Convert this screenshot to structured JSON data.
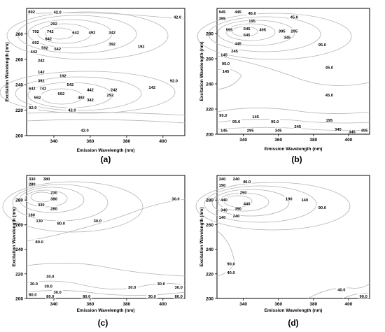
{
  "chart_data": [
    {
      "panel": "(a)",
      "type": "contour",
      "xlabel": "Emission Wavelength (nm)",
      "ylabel": "Excitation Wavelength (nm)",
      "xlim": [
        325,
        412
      ],
      "ylim": [
        200,
        300
      ],
      "xticks": [
        "340",
        "360",
        "380",
        "400"
      ],
      "yticks": [
        "200",
        "220",
        "240",
        "260",
        "280"
      ],
      "contour_labels": [
        {
          "text": "892",
          "x": 327,
          "y": 298
        },
        {
          "text": "42.0",
          "x": 342,
          "y": 297
        },
        {
          "text": "42.0",
          "x": 408,
          "y": 293
        },
        {
          "text": "292",
          "x": 340,
          "y": 288
        },
        {
          "text": "792",
          "x": 330,
          "y": 282
        },
        {
          "text": "742",
          "x": 338,
          "y": 282
        },
        {
          "text": "642",
          "x": 352,
          "y": 281
        },
        {
          "text": "492",
          "x": 361,
          "y": 281
        },
        {
          "text": "342",
          "x": 372,
          "y": 281
        },
        {
          "text": "842",
          "x": 337,
          "y": 276
        },
        {
          "text": "692",
          "x": 330,
          "y": 273
        },
        {
          "text": "392",
          "x": 372,
          "y": 272
        },
        {
          "text": "592",
          "x": 335,
          "y": 269
        },
        {
          "text": "542",
          "x": 342,
          "y": 268
        },
        {
          "text": "192",
          "x": 388,
          "y": 270
        },
        {
          "text": "442",
          "x": 329,
          "y": 266
        },
        {
          "text": "242",
          "x": 333,
          "y": 259
        },
        {
          "text": "142",
          "x": 333,
          "y": 250
        },
        {
          "text": "192",
          "x": 345,
          "y": 247
        },
        {
          "text": "392",
          "x": 333,
          "y": 243
        },
        {
          "text": "542",
          "x": 349,
          "y": 240
        },
        {
          "text": "642",
          "x": 328,
          "y": 237
        },
        {
          "text": "742",
          "x": 334,
          "y": 237
        },
        {
          "text": "692",
          "x": 344,
          "y": 233
        },
        {
          "text": "442",
          "x": 360,
          "y": 236
        },
        {
          "text": "242",
          "x": 373,
          "y": 236
        },
        {
          "text": "142",
          "x": 394,
          "y": 238
        },
        {
          "text": "92.0",
          "x": 406,
          "y": 243
        },
        {
          "text": "592",
          "x": 331,
          "y": 230
        },
        {
          "text": "492",
          "x": 355,
          "y": 230
        },
        {
          "text": "292",
          "x": 371,
          "y": 232
        },
        {
          "text": "342",
          "x": 360,
          "y": 228
        },
        {
          "text": "92.0",
          "x": 328,
          "y": 222
        },
        {
          "text": "42.0",
          "x": 350,
          "y": 220
        },
        {
          "text": "42.0",
          "x": 357,
          "y": 204
        }
      ]
    },
    {
      "panel": "(b)",
      "type": "contour",
      "xlabel": "Emission Wavelength (nm)",
      "ylabel": "Excitation Wavelength (nm)",
      "xlim": [
        325,
        412
      ],
      "ylim": [
        200,
        300
      ],
      "xticks": [
        "340",
        "360",
        "380",
        "400"
      ],
      "yticks": [
        "200",
        "220",
        "240",
        "260",
        "280"
      ],
      "contour_labels": [
        {
          "text": "945",
          "x": 328,
          "y": 298
        },
        {
          "text": "445",
          "x": 337,
          "y": 298
        },
        {
          "text": "45.0",
          "x": 345,
          "y": 296
        },
        {
          "text": "395",
          "x": 328,
          "y": 292
        },
        {
          "text": "195",
          "x": 345,
          "y": 290
        },
        {
          "text": "45.0",
          "x": 369,
          "y": 293
        },
        {
          "text": "595",
          "x": 332,
          "y": 283
        },
        {
          "text": "545",
          "x": 342,
          "y": 284
        },
        {
          "text": "495",
          "x": 351,
          "y": 283
        },
        {
          "text": "395",
          "x": 362,
          "y": 282
        },
        {
          "text": "295",
          "x": 369,
          "y": 282
        },
        {
          "text": "645",
          "x": 342,
          "y": 279
        },
        {
          "text": "345",
          "x": 365,
          "y": 277
        },
        {
          "text": "445",
          "x": 337,
          "y": 272
        },
        {
          "text": "95.0",
          "x": 385,
          "y": 271
        },
        {
          "text": "245",
          "x": 335,
          "y": 266
        },
        {
          "text": "145",
          "x": 329,
          "y": 263
        },
        {
          "text": "95.0",
          "x": 330,
          "y": 256
        },
        {
          "text": "145",
          "x": 330,
          "y": 250
        },
        {
          "text": "45.0",
          "x": 389,
          "y": 253
        },
        {
          "text": "45.0",
          "x": 389,
          "y": 231
        },
        {
          "text": "95.0",
          "x": 328,
          "y": 215
        },
        {
          "text": "145",
          "x": 347,
          "y": 214
        },
        {
          "text": "95.0",
          "x": 336,
          "y": 210
        },
        {
          "text": "95.0",
          "x": 358,
          "y": 210
        },
        {
          "text": "195",
          "x": 389,
          "y": 211
        },
        {
          "text": "245",
          "x": 371,
          "y": 206
        },
        {
          "text": "145",
          "x": 329,
          "y": 203
        },
        {
          "text": "295",
          "x": 344,
          "y": 203
        },
        {
          "text": "345",
          "x": 360,
          "y": 203
        },
        {
          "text": "345",
          "x": 394,
          "y": 204
        },
        {
          "text": "345",
          "x": 402,
          "y": 202
        },
        {
          "text": "495",
          "x": 409,
          "y": 203
        }
      ]
    },
    {
      "panel": "(c)",
      "type": "contour",
      "xlabel": "Emission Wavelength (nm)",
      "ylabel": "Excitation Wavelength (nm)",
      "xlim": [
        325,
        412
      ],
      "ylim": [
        200,
        300
      ],
      "xticks": [
        "340",
        "360",
        "380",
        "400"
      ],
      "yticks": [
        "200",
        "220",
        "240",
        "260",
        "280"
      ],
      "contour_labels": [
        {
          "text": "330",
          "x": 328,
          "y": 298
        },
        {
          "text": "380",
          "x": 336,
          "y": 298
        },
        {
          "text": "280",
          "x": 328,
          "y": 293
        },
        {
          "text": "230",
          "x": 340,
          "y": 286
        },
        {
          "text": "380",
          "x": 340,
          "y": 281
        },
        {
          "text": "330",
          "x": 333,
          "y": 276
        },
        {
          "text": "280",
          "x": 340,
          "y": 273
        },
        {
          "text": "30.0",
          "x": 407,
          "y": 281
        },
        {
          "text": "180",
          "x": 327,
          "y": 268
        },
        {
          "text": "130",
          "x": 332,
          "y": 263
        },
        {
          "text": "80.0",
          "x": 344,
          "y": 261
        },
        {
          "text": "30.0",
          "x": 364,
          "y": 263
        },
        {
          "text": "80.0",
          "x": 332,
          "y": 246
        },
        {
          "text": "30.0",
          "x": 338,
          "y": 218
        },
        {
          "text": "30.0",
          "x": 329,
          "y": 212
        },
        {
          "text": "30.0",
          "x": 337,
          "y": 210
        },
        {
          "text": "30.0",
          "x": 342,
          "y": 205
        },
        {
          "text": "80.0",
          "x": 328,
          "y": 203
        },
        {
          "text": "80.0",
          "x": 338,
          "y": 200
        },
        {
          "text": "80.0",
          "x": 358,
          "y": 200
        },
        {
          "text": "30.0",
          "x": 383,
          "y": 209
        },
        {
          "text": "30.0",
          "x": 399,
          "y": 212
        },
        {
          "text": "30.0",
          "x": 394,
          "y": 201
        },
        {
          "text": "30.0",
          "x": 410,
          "y": 209
        },
        {
          "text": "80.0",
          "x": 410,
          "y": 200
        }
      ]
    },
    {
      "panel": "(d)",
      "type": "contour",
      "xlabel": "Emission Wavelength (nm)",
      "ylabel": "Excitation Wavelength (nm)",
      "xlim": [
        325,
        412
      ],
      "ylim": [
        200,
        300
      ],
      "xticks": [
        "340",
        "360",
        "380",
        "400"
      ],
      "yticks": [
        "200",
        "220",
        "240",
        "260",
        "280"
      ],
      "contour_labels": [
        {
          "text": "340",
          "x": 328,
          "y": 298
        },
        {
          "text": "240",
          "x": 336,
          "y": 298
        },
        {
          "text": "40.0",
          "x": 342,
          "y": 295
        },
        {
          "text": "190",
          "x": 328,
          "y": 292
        },
        {
          "text": "290",
          "x": 340,
          "y": 286
        },
        {
          "text": "190",
          "x": 366,
          "y": 281
        },
        {
          "text": "140",
          "x": 375,
          "y": 280
        },
        {
          "text": "440",
          "x": 329,
          "y": 280
        },
        {
          "text": "440",
          "x": 342,
          "y": 277
        },
        {
          "text": "390",
          "x": 337,
          "y": 273
        },
        {
          "text": "90.0",
          "x": 385,
          "y": 274
        },
        {
          "text": "340",
          "x": 329,
          "y": 272
        },
        {
          "text": "240",
          "x": 336,
          "y": 267
        },
        {
          "text": "140",
          "x": 328,
          "y": 266
        },
        {
          "text": "90.0",
          "x": 333,
          "y": 228
        },
        {
          "text": "40.0",
          "x": 333,
          "y": 221
        },
        {
          "text": "40.0",
          "x": 396,
          "y": 207
        },
        {
          "text": "90.0",
          "x": 411,
          "y": 201
        }
      ]
    }
  ],
  "panels": {
    "a": "(a)",
    "b": "(b)",
    "c": "(c)",
    "d": "(d)"
  },
  "colors": {
    "contour": "#b4b4b4",
    "axis": "#000000",
    "label_bg": "#ffffff"
  }
}
